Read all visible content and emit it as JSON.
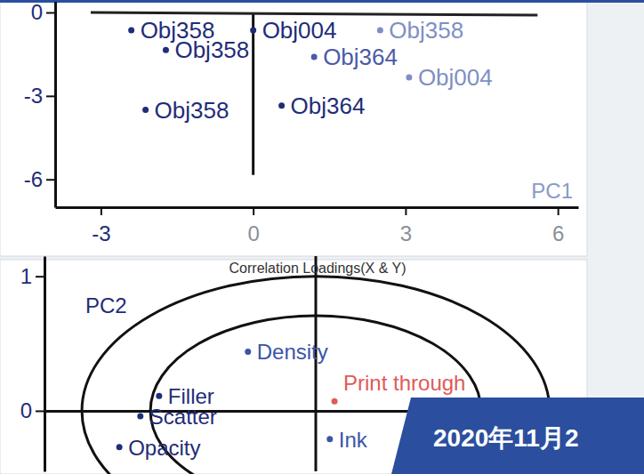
{
  "banner": {
    "text": "2020年11月2"
  },
  "chart_data": [
    {
      "type": "scatter",
      "x_label": "PC1",
      "x": [
        -2.4,
        -1.72,
        -2.12,
        0,
        0.56,
        1.2,
        2.5,
        3.07
      ],
      "values": [
        -0.64,
        -1.35,
        -3.5,
        -0.64,
        -3.35,
        -1.6,
        -0.64,
        -2.33
      ],
      "point_labels": [
        "Obj358",
        "Obj358",
        "Obj358",
        "Obj004",
        "Obj364",
        "Obj364",
        "Obj358",
        "Obj004"
      ],
      "colors": [
        "#1f2d78",
        "#1f2d78",
        "#1f2d78",
        "#1f2d78",
        "#1f2d78",
        "#4a5aa8",
        "#7f8fc4",
        "#7f8fc4"
      ],
      "xlim": [
        -3.9,
        6.4
      ],
      "ylim": [
        -7,
        0.4
      ],
      "xticks": [
        -3,
        0,
        3,
        6
      ],
      "yticks": [
        -6,
        -3,
        0
      ],
      "marker": "circle"
    },
    {
      "type": "scatter",
      "title": "Correlation Loadings(X & Y)",
      "y_label": "PC2",
      "x": [
        -0.29,
        -0.67,
        -0.75,
        -0.84,
        0.08,
        0.06
      ],
      "values": [
        0.44,
        0.11,
        -0.04,
        -0.27,
        0.07,
        -0.21
      ],
      "point_labels": [
        "Density",
        "Filler",
        "Scatter",
        "Opacity",
        "Print through",
        "Ink"
      ],
      "colors": [
        "#3a55a8",
        "#1f2d78",
        "#1f2d78",
        "#1f2d78",
        "#e05a5a",
        "#3a55a8"
      ],
      "xlim": [
        -1.16,
        1.16
      ],
      "ylim": [
        -0.45,
        1.15
      ],
      "xticks": [],
      "yticks": [
        0,
        1
      ],
      "tick_labels": "y",
      "marker": "circle"
    }
  ]
}
